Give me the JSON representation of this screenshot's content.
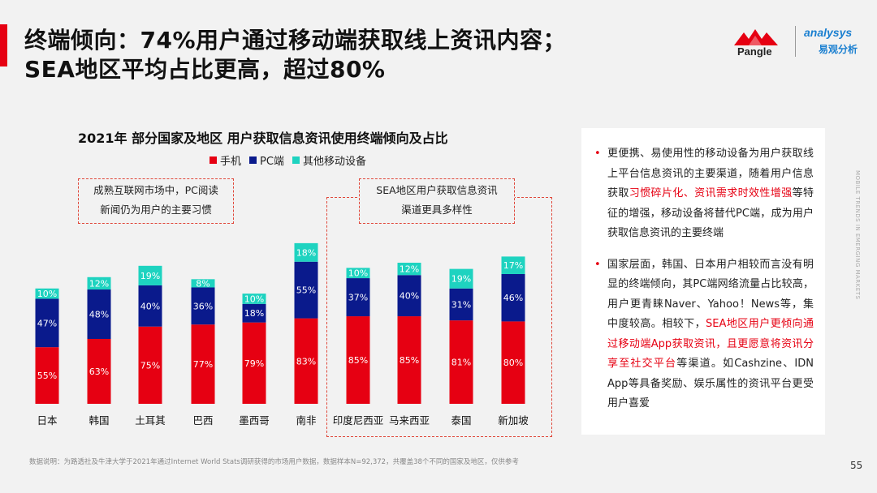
{
  "header": {
    "title_line1": "终端倾向：74%用户通过移动端获取线上资讯内容；",
    "title_line2": "SEA地区平均占比更高，超过80%"
  },
  "logos": {
    "pangle": "Pangle",
    "analysys_en": "analysys",
    "analysys_cn": "易观分析"
  },
  "notes": {
    "mature_line1": "成熟互联网市场中，PC阅读",
    "mature_line2": "新闻仍为用户的主要习惯",
    "sea_line1": "SEA地区用户获取信息资讯",
    "sea_line2": "渠道更具多样性"
  },
  "chart_data": {
    "type": "bar",
    "stacked": true,
    "title": "2021年 部分国家及地区 用户获取信息资讯使用终端倾向及占比",
    "categories": [
      "日本",
      "韩国",
      "土耳其",
      "巴西",
      "墨西哥",
      "南非",
      "印度尼西亚",
      "马来西亚",
      "泰国",
      "新加坡"
    ],
    "series": [
      {
        "name": "手机",
        "color": "#e60012",
        "values": [
          55,
          63,
          75,
          77,
          79,
          83,
          85,
          85,
          81,
          80
        ]
      },
      {
        "name": "PC端",
        "color": "#0a1a8c",
        "values": [
          47,
          48,
          40,
          36,
          18,
          55,
          37,
          40,
          31,
          46
        ]
      },
      {
        "name": "其他移动设备",
        "color": "#1ed3c0",
        "values": [
          10,
          12,
          19,
          8,
          10,
          18,
          10,
          12,
          19,
          17
        ]
      }
    ],
    "value_suffix": "%",
    "legend_position": "top",
    "grid": false
  },
  "panel": {
    "bullet1_a": "更便携、易使用性的移动设备为用户获取线上平台信息资讯的主要渠道，随着用户信息获取",
    "bullet1_hl": "习惯碎片化、资讯需求时效性增强",
    "bullet1_b": "等特征的增强，移动设备将替代PC端，成为用户获取信息资讯的主要终端",
    "bullet2_a": "国家层面，韩国、日本用户相较而言没有明显的终端倾向，其PC端网络流量占比较高，用户更青睐Naver、Yahoo！News等，集中度较高。相较下，",
    "bullet2_hl": "SEA地区用户更倾向通过移动端App获取资讯，且更愿意将资讯分享至社交平台",
    "bullet2_b": "等渠道。如Cashzine、IDN App等具备奖励、娱乐属性的资讯平台更受用户喜爱"
  },
  "side_text": "MOBILE TRENDS IN EMERGING MARKETS",
  "footnote": "数据说明：为路透社及牛津大学于2021年通过Internet World Stats调研获得的市场用户数据，数据样本N=92,372，共覆盖38个不同的国家及地区，仅供参考",
  "page_number": "55"
}
